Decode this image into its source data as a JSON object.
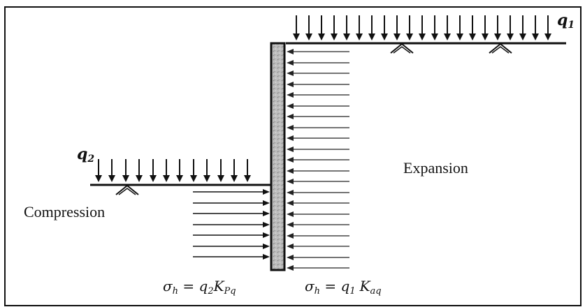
{
  "labels": {
    "q1": "q",
    "q1_sub": "1",
    "q2": "q",
    "q2_sub": "2",
    "expansion": "Expansion",
    "compression": "Compression"
  },
  "formulas": {
    "passive": {
      "sigma": "σ",
      "sigma_sub": "h",
      "eq": " = q",
      "q_sub": "2",
      "k": "K",
      "k_sub": "Pq"
    },
    "active": {
      "sigma": "σ",
      "sigma_sub": "h",
      "eq": " = q",
      "q_sub": "1",
      "k": "K",
      "k_sub": "aq"
    }
  },
  "colors": {
    "line": "#111111",
    "wall_fill": "#b8b8b8",
    "arrow_right": "#111111",
    "arrow_left": "#222222"
  }
}
